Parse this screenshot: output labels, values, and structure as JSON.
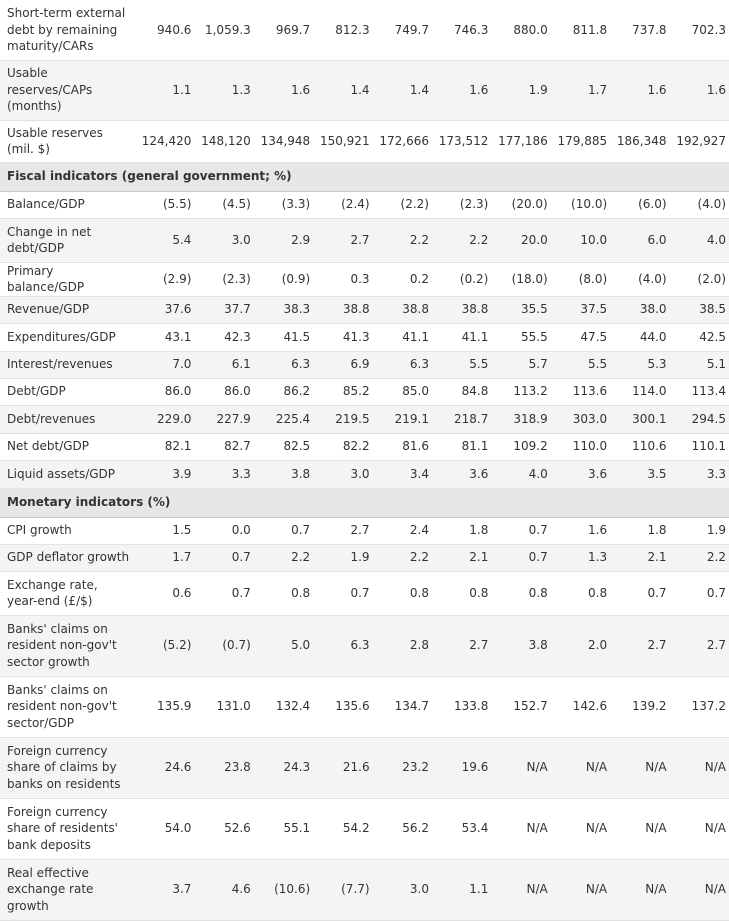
{
  "table": {
    "rows": [
      {
        "type": "data",
        "h": 60,
        "label": "Short-term external debt by remaining maturity/CARs",
        "values": [
          "940.6",
          "1,059.3",
          "969.7",
          "812.3",
          "749.7",
          "746.3",
          "880.0",
          "811.8",
          "737.8",
          "702.3"
        ]
      },
      {
        "type": "data",
        "h": 60,
        "alt": true,
        "label": "Usable reserves/CAPs (months)",
        "values": [
          "1.1",
          "1.3",
          "1.6",
          "1.4",
          "1.4",
          "1.6",
          "1.9",
          "1.7",
          "1.6",
          "1.6"
        ]
      },
      {
        "type": "data",
        "h": 42,
        "label": "Usable reserves (mil. $)",
        "values": [
          "124,420",
          "148,120",
          "134,948",
          "150,921",
          "172,666",
          "173,512",
          "177,186",
          "179,885",
          "186,348",
          "192,927"
        ]
      },
      {
        "type": "section",
        "h": 29,
        "label": "Fiscal indicators (general government; %)"
      },
      {
        "type": "data",
        "h": 27,
        "label": "Balance/GDP",
        "values": [
          "(5.5)",
          "(4.5)",
          "(3.3)",
          "(2.4)",
          "(2.2)",
          "(2.3)",
          "(20.0)",
          "(10.0)",
          "(6.0)",
          "(4.0)"
        ]
      },
      {
        "type": "data",
        "h": 44,
        "alt": true,
        "label": "Change in net debt/GDP",
        "values": [
          "5.4",
          "3.0",
          "2.9",
          "2.7",
          "2.2",
          "2.2",
          "20.0",
          "10.0",
          "6.0",
          "4.0"
        ]
      },
      {
        "type": "data",
        "h": 28,
        "label": "Primary balance/GDP",
        "values": [
          "(2.9)",
          "(2.3)",
          "(0.9)",
          "0.3",
          "0.2",
          "(0.2)",
          "(18.0)",
          "(8.0)",
          "(4.0)",
          "(2.0)"
        ]
      },
      {
        "type": "data",
        "h": 27,
        "alt": true,
        "label": "Revenue/GDP",
        "values": [
          "37.6",
          "37.7",
          "38.3",
          "38.8",
          "38.8",
          "38.8",
          "35.5",
          "37.5",
          "38.0",
          "38.5"
        ]
      },
      {
        "type": "data",
        "h": 28,
        "label": "Expenditures/GDP",
        "values": [
          "43.1",
          "42.3",
          "41.5",
          "41.3",
          "41.1",
          "41.1",
          "55.5",
          "47.5",
          "44.0",
          "42.5"
        ]
      },
      {
        "type": "data",
        "h": 27,
        "alt": true,
        "label": "Interest/revenues",
        "values": [
          "7.0",
          "6.1",
          "6.3",
          "6.9",
          "6.3",
          "5.5",
          "5.7",
          "5.5",
          "5.3",
          "5.1"
        ]
      },
      {
        "type": "data",
        "h": 27,
        "label": "Debt/GDP",
        "values": [
          "86.0",
          "86.0",
          "86.2",
          "85.2",
          "85.0",
          "84.8",
          "113.2",
          "113.6",
          "114.0",
          "113.4"
        ]
      },
      {
        "type": "data",
        "h": 28,
        "alt": true,
        "label": "Debt/revenues",
        "values": [
          "229.0",
          "227.9",
          "225.4",
          "219.5",
          "219.1",
          "218.7",
          "318.9",
          "303.0",
          "300.1",
          "294.5"
        ]
      },
      {
        "type": "data",
        "h": 27,
        "label": "Net debt/GDP",
        "values": [
          "82.1",
          "82.7",
          "82.5",
          "82.2",
          "81.6",
          "81.1",
          "109.2",
          "110.0",
          "110.6",
          "110.1"
        ]
      },
      {
        "type": "data",
        "h": 28,
        "alt": true,
        "label": "Liquid assets/GDP",
        "values": [
          "3.9",
          "3.3",
          "3.8",
          "3.0",
          "3.4",
          "3.6",
          "4.0",
          "3.6",
          "3.5",
          "3.3"
        ]
      },
      {
        "type": "section",
        "h": 28,
        "label": "Monetary indicators (%)"
      },
      {
        "type": "data",
        "h": 27,
        "label": "CPI growth",
        "values": [
          "1.5",
          "0.0",
          "0.7",
          "2.7",
          "2.4",
          "1.8",
          "0.7",
          "1.6",
          "1.8",
          "1.9"
        ]
      },
      {
        "type": "data",
        "h": 27,
        "alt": true,
        "label": "GDP deflator growth",
        "values": [
          "1.7",
          "0.7",
          "2.2",
          "1.9",
          "2.2",
          "2.1",
          "0.7",
          "1.3",
          "2.1",
          "2.2"
        ]
      },
      {
        "type": "data",
        "h": 44,
        "label": "Exchange rate, year-end (£/$)",
        "values": [
          "0.6",
          "0.7",
          "0.8",
          "0.7",
          "0.8",
          "0.8",
          "0.8",
          "0.8",
          "0.7",
          "0.7"
        ]
      },
      {
        "type": "data",
        "h": 61,
        "alt": true,
        "label": "Banks' claims on resident non-gov't sector growth",
        "values": [
          "(5.2)",
          "(0.7)",
          "5.0",
          "6.3",
          "2.8",
          "2.7",
          "3.8",
          "2.0",
          "2.7",
          "2.7"
        ]
      },
      {
        "type": "data",
        "h": 61,
        "label": "Banks' claims on resident non-gov't sector/GDP",
        "values": [
          "135.9",
          "131.0",
          "132.4",
          "135.6",
          "134.7",
          "133.8",
          "152.7",
          "142.6",
          "139.2",
          "137.2"
        ]
      },
      {
        "type": "data",
        "h": 61,
        "alt": true,
        "label": "Foreign currency share of claims by banks on residents",
        "values": [
          "24.6",
          "23.8",
          "24.3",
          "21.6",
          "23.2",
          "19.6",
          "N/A",
          "N/A",
          "N/A",
          "N/A"
        ]
      },
      {
        "type": "data",
        "h": 61,
        "label": "Foreign currency share of residents' bank deposits",
        "values": [
          "54.0",
          "52.6",
          "55.1",
          "54.2",
          "56.2",
          "53.4",
          "N/A",
          "N/A",
          "N/A",
          "N/A"
        ]
      },
      {
        "type": "data",
        "h": 61,
        "alt": true,
        "label": "Real effective exchange rate growth",
        "values": [
          "3.7",
          "4.6",
          "(10.6)",
          "(7.7)",
          "3.0",
          "1.1",
          "N/A",
          "N/A",
          "N/A",
          "N/A"
        ]
      }
    ]
  }
}
